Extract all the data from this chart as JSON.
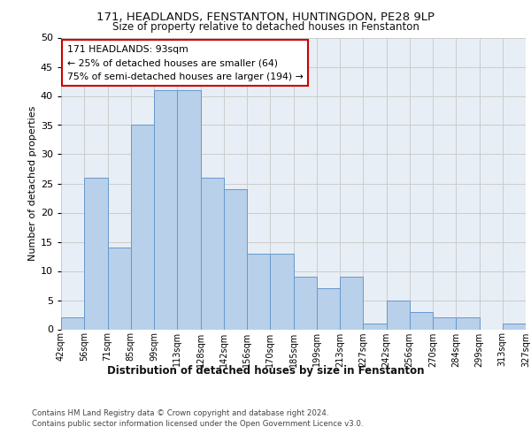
{
  "title1": "171, HEADLANDS, FENSTANTON, HUNTINGDON, PE28 9LP",
  "title2": "Size of property relative to detached houses in Fenstanton",
  "xlabel": "Distribution of detached houses by size in Fenstanton",
  "ylabel": "Number of detached properties",
  "bar_values": [
    2,
    26,
    14,
    35,
    41,
    41,
    26,
    24,
    13,
    13,
    9,
    7,
    9,
    1,
    5,
    3,
    2,
    2,
    0,
    1
  ],
  "bar_labels": [
    "42sqm",
    "56sqm",
    "71sqm",
    "85sqm",
    "99sqm",
    "113sqm",
    "128sqm",
    "142sqm",
    "156sqm",
    "170sqm",
    "185sqm",
    "199sqm",
    "213sqm",
    "227sqm",
    "242sqm",
    "256sqm",
    "270sqm",
    "284sqm",
    "299sqm",
    "313sqm",
    "327sqm"
  ],
  "bar_color": "#b8d0ea",
  "bar_edge_color": "#6699cc",
  "annotation_line1": "171 HEADLANDS: 93sqm",
  "annotation_line2": "← 25% of detached houses are smaller (64)",
  "annotation_line3": "75% of semi-detached houses are larger (194) →",
  "annotation_box_color": "#ffffff",
  "annotation_box_edge_color": "#cc0000",
  "ylim": [
    0,
    50
  ],
  "yticks": [
    0,
    5,
    10,
    15,
    20,
    25,
    30,
    35,
    40,
    45,
    50
  ],
  "bg_color": "#e8eef5",
  "footer1": "Contains HM Land Registry data © Crown copyright and database right 2024.",
  "footer2": "Contains public sector information licensed under the Open Government Licence v3.0."
}
